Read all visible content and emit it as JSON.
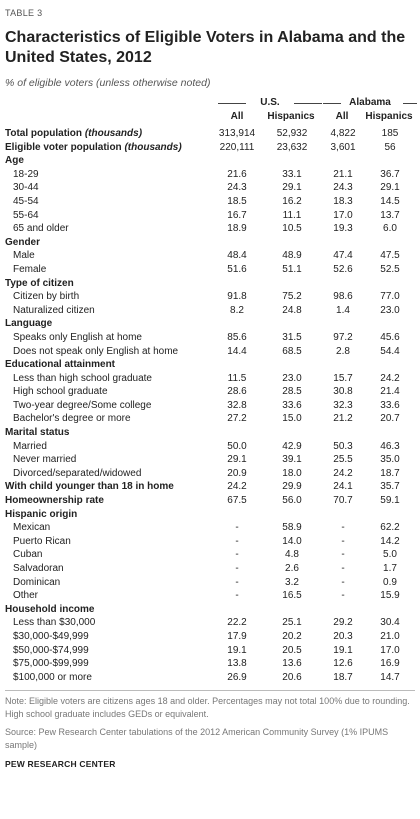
{
  "label": "TABLE 3",
  "title": "Characteristics of Eligible Voters in Alabama and the United States, 2012",
  "subtitle": "% of eligible voters (unless otherwise noted)",
  "groups": {
    "us": "U.S.",
    "al": "Alabama"
  },
  "columns": [
    "All",
    "Hispanics",
    "All",
    "Hispanics"
  ],
  "totals": [
    {
      "label": "Total population",
      "unit": "(thousands)",
      "values": [
        "313,914",
        "52,932",
        "4,822",
        "185"
      ]
    },
    {
      "label": "Eligible voter population",
      "unit": "(thousands)",
      "values": [
        "220,111",
        "23,632",
        "3,601",
        "56"
      ]
    }
  ],
  "rows": [
    {
      "type": "section",
      "label": "Age"
    },
    {
      "type": "item",
      "label": "18-29",
      "values": [
        "21.6",
        "33.1",
        "21.1",
        "36.7"
      ]
    },
    {
      "type": "item",
      "label": "30-44",
      "values": [
        "24.3",
        "29.1",
        "24.3",
        "29.1"
      ]
    },
    {
      "type": "item",
      "label": "45-54",
      "values": [
        "18.5",
        "16.2",
        "18.3",
        "14.5"
      ]
    },
    {
      "type": "item",
      "label": "55-64",
      "values": [
        "16.7",
        "11.1",
        "17.0",
        "13.7"
      ]
    },
    {
      "type": "item",
      "label": "65 and older",
      "values": [
        "18.9",
        "10.5",
        "19.3",
        "6.0"
      ]
    },
    {
      "type": "section",
      "label": "Gender"
    },
    {
      "type": "item",
      "label": "Male",
      "values": [
        "48.4",
        "48.9",
        "47.4",
        "47.5"
      ]
    },
    {
      "type": "item",
      "label": "Female",
      "values": [
        "51.6",
        "51.1",
        "52.6",
        "52.5"
      ]
    },
    {
      "type": "section",
      "label": "Type of citizen"
    },
    {
      "type": "item",
      "label": "Citizen by birth",
      "values": [
        "91.8",
        "75.2",
        "98.6",
        "77.0"
      ]
    },
    {
      "type": "item",
      "label": "Naturalized citizen",
      "values": [
        "8.2",
        "24.8",
        "1.4",
        "23.0"
      ]
    },
    {
      "type": "section",
      "label": "Language"
    },
    {
      "type": "item",
      "label": "Speaks only English at home",
      "values": [
        "85.6",
        "31.5",
        "97.2",
        "45.6"
      ]
    },
    {
      "type": "item",
      "label": "Does not speak only English at home",
      "values": [
        "14.4",
        "68.5",
        "2.8",
        "54.4"
      ]
    },
    {
      "type": "section",
      "label": "Educational attainment"
    },
    {
      "type": "item",
      "label": "Less than high school graduate",
      "values": [
        "11.5",
        "23.0",
        "15.7",
        "24.2"
      ]
    },
    {
      "type": "item",
      "label": "High school graduate",
      "values": [
        "28.6",
        "28.5",
        "30.8",
        "21.4"
      ]
    },
    {
      "type": "item",
      "label": "Two-year degree/Some college",
      "values": [
        "32.8",
        "33.6",
        "32.3",
        "33.6"
      ]
    },
    {
      "type": "item",
      "label": "Bachelor's degree or more",
      "values": [
        "27.2",
        "15.0",
        "21.2",
        "20.7"
      ]
    },
    {
      "type": "section",
      "label": "Marital status"
    },
    {
      "type": "item",
      "label": "Married",
      "values": [
        "50.0",
        "42.9",
        "50.3",
        "46.3"
      ]
    },
    {
      "type": "item",
      "label": "Never married",
      "values": [
        "29.1",
        "39.1",
        "25.5",
        "35.0"
      ]
    },
    {
      "type": "item",
      "label": "Divorced/separated/widowed",
      "values": [
        "20.9",
        "18.0",
        "24.2",
        "18.7"
      ]
    },
    {
      "type": "boldrow",
      "label": "With child younger than 18 in home",
      "values": [
        "24.2",
        "29.9",
        "24.1",
        "35.7"
      ]
    },
    {
      "type": "boldrow",
      "label": "Homeownership rate",
      "values": [
        "67.5",
        "56.0",
        "70.7",
        "59.1"
      ]
    },
    {
      "type": "section",
      "label": "Hispanic origin"
    },
    {
      "type": "item",
      "label": "Mexican",
      "values": [
        "-",
        "58.9",
        "-",
        "62.2"
      ]
    },
    {
      "type": "item",
      "label": "Puerto Rican",
      "values": [
        "-",
        "14.0",
        "-",
        "14.2"
      ]
    },
    {
      "type": "item",
      "label": "Cuban",
      "values": [
        "-",
        "4.8",
        "-",
        "5.0"
      ]
    },
    {
      "type": "item",
      "label": "Salvadoran",
      "values": [
        "-",
        "2.6",
        "-",
        "1.7"
      ]
    },
    {
      "type": "item",
      "label": "Dominican",
      "values": [
        "-",
        "3.2",
        "-",
        "0.9"
      ]
    },
    {
      "type": "item",
      "label": "Other",
      "values": [
        "-",
        "16.5",
        "-",
        "15.9"
      ]
    },
    {
      "type": "section",
      "label": "Household income"
    },
    {
      "type": "item",
      "label": "Less than $30,000",
      "values": [
        "22.2",
        "25.1",
        "29.2",
        "30.4"
      ]
    },
    {
      "type": "item",
      "label": "$30,000-$49,999",
      "values": [
        "17.9",
        "20.2",
        "20.3",
        "21.0"
      ]
    },
    {
      "type": "item",
      "label": "$50,000-$74,999",
      "values": [
        "19.1",
        "20.5",
        "19.1",
        "17.0"
      ]
    },
    {
      "type": "item",
      "label": "$75,000-$99,999",
      "values": [
        "13.8",
        "13.6",
        "12.6",
        "16.9"
      ]
    },
    {
      "type": "item",
      "label": "$100,000 or more",
      "values": [
        "26.9",
        "20.6",
        "18.7",
        "14.7"
      ]
    }
  ],
  "note": "Note: Eligible voters are citizens ages 18 and older. Percentages may not total 100% due to rounding. High school graduate includes GEDs or equivalent.",
  "source": "Source: Pew Research Center tabulations of the 2012 American Community Survey (1% IPUMS sample)",
  "brand": "PEW RESEARCH CENTER"
}
